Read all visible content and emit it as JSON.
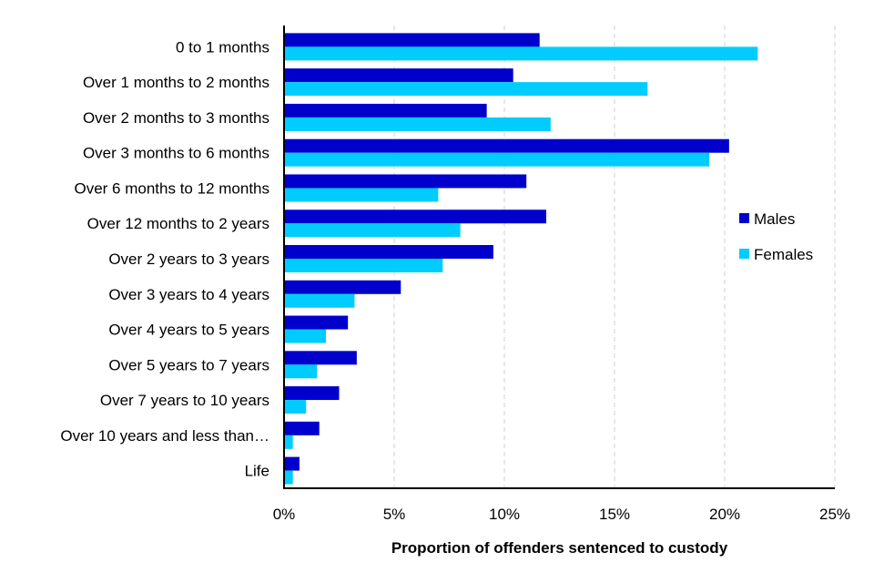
{
  "chart_data": {
    "type": "bar",
    "orientation": "horizontal",
    "title": "",
    "xlabel": "Proportion of offenders sentenced to custody",
    "ylabel": "",
    "xlim": [
      0,
      25
    ],
    "x_ticks": [
      0,
      5,
      10,
      15,
      20,
      25
    ],
    "x_tick_labels": [
      "0%",
      "5%",
      "10%",
      "15%",
      "20%",
      "25%"
    ],
    "grid": "vertical dashed",
    "legend_position": "right",
    "categories": [
      "0 to 1 months",
      "Over 1 months to 2 months",
      "Over 2 months to 3 months",
      "Over 3 months to 6 months",
      "Over 6 months to 12 months",
      "Over 12 months to 2 years",
      "Over 2 years to 3 years",
      "Over 3 years to 4 years",
      "Over 4 years to 5 years",
      "Over 5 years to 7 years",
      "Over 7 years to 10 years",
      "Over 10 years and less than…",
      "Life"
    ],
    "series": [
      {
        "name": "Males",
        "color": "#0000CC",
        "values": [
          11.6,
          10.4,
          9.2,
          20.2,
          11.0,
          11.9,
          9.5,
          5.3,
          2.9,
          3.3,
          2.5,
          1.6,
          0.7
        ]
      },
      {
        "name": "Females",
        "color": "#00CCFF",
        "values": [
          21.5,
          16.5,
          12.1,
          19.3,
          7.0,
          8.0,
          7.2,
          3.2,
          1.9,
          1.5,
          1.0,
          0.4,
          0.4
        ]
      }
    ]
  }
}
